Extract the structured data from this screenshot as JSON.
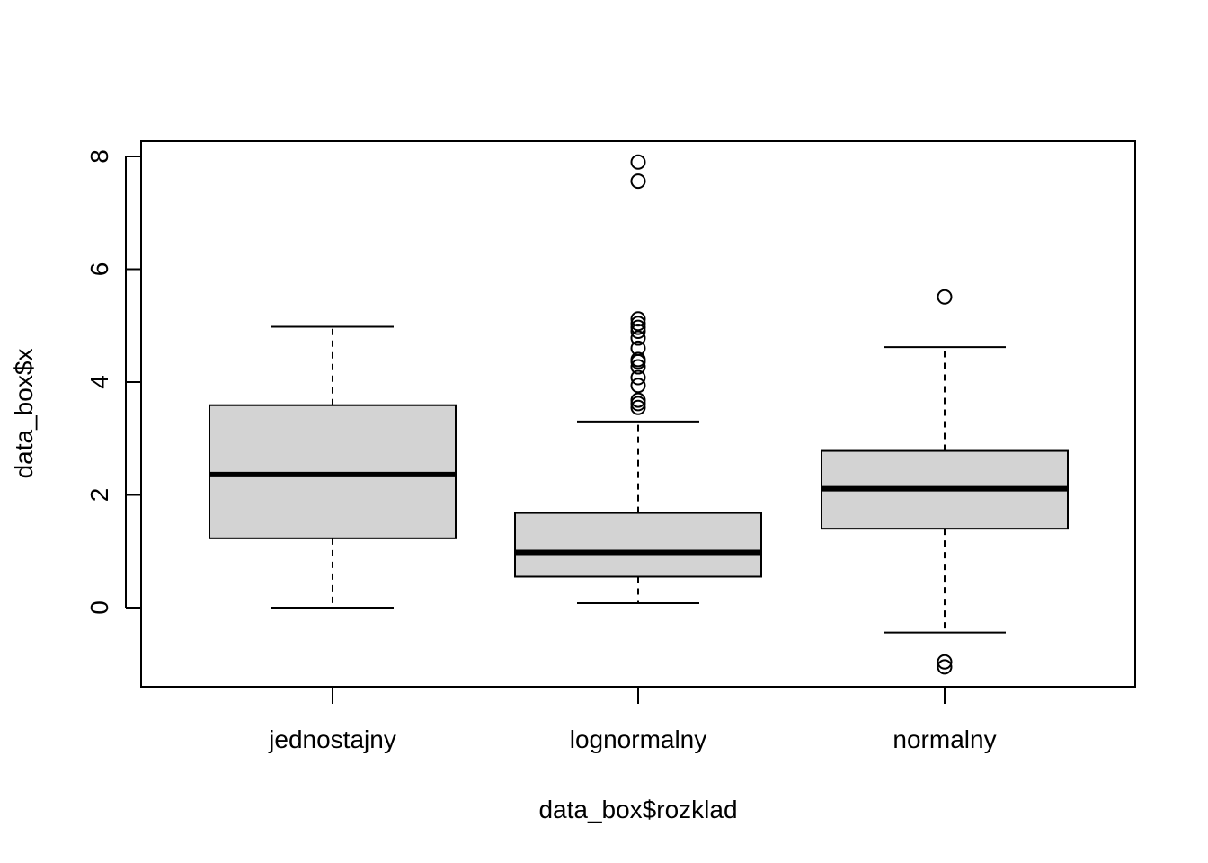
{
  "chart_data": {
    "type": "boxplot",
    "title": "",
    "xlabel": "data_box$rozklad",
    "ylabel": "data_box$x",
    "ylim": [
      -1.4,
      8.27
    ],
    "yticks": [
      0,
      2,
      4,
      6,
      8
    ],
    "categories": [
      "jednostajny",
      "lognormalny",
      "normalny"
    ],
    "box_fill": "#d3d3d3",
    "boxes": [
      {
        "category": "jednostajny",
        "whisker_low": 0.0,
        "q1": 1.23,
        "median": 2.36,
        "q3": 3.59,
        "whisker_high": 4.98,
        "outliers": []
      },
      {
        "category": "lognormalny",
        "whisker_low": 0.08,
        "q1": 0.55,
        "median": 0.98,
        "q3": 1.68,
        "whisker_high": 3.3,
        "outliers": [
          7.9,
          7.56,
          5.12,
          5.04,
          4.97,
          4.9,
          4.78,
          4.6,
          4.4,
          4.36,
          4.27,
          4.08,
          3.94,
          3.68,
          3.62,
          3.55
        ]
      },
      {
        "category": "normalny",
        "whisker_low": -0.44,
        "q1": 1.4,
        "median": 2.11,
        "q3": 2.78,
        "whisker_high": 4.62,
        "outliers": [
          5.51,
          -0.96,
          -1.05
        ]
      }
    ]
  }
}
